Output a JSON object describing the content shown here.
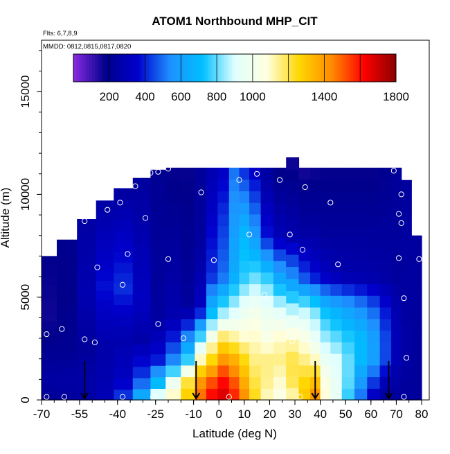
{
  "chart_data": {
    "type": "heatmap",
    "title": "ATOM1 Northbound MHP_CIT",
    "subtitle_flights": "Flts: 6,7,8,9",
    "subtitle_dates": "MMDD: 0812,0815,0817,0820",
    "xlabel": "Latitude (deg N)",
    "ylabel": "Altitude (m)",
    "xlim": [
      -70,
      83
    ],
    "ylim": [
      0,
      17500
    ],
    "x_ticks": [
      -70,
      -55,
      -40,
      -25,
      -10,
      0,
      10,
      20,
      30,
      40,
      50,
      60,
      70,
      80
    ],
    "y_ticks": [
      0,
      5000,
      10000,
      15000
    ],
    "colorbar": {
      "range": [
        0,
        1800
      ],
      "ticks": [
        200,
        400,
        600,
        800,
        1000,
        1400,
        1800
      ],
      "position": "top",
      "colors": [
        "#8a2be2",
        "#00008b",
        "#0000cd",
        "#1e90ff",
        "#00bfff",
        "#e0ffff",
        "#ffffe0",
        "#ffd700",
        "#ff8c00",
        "#ff0000",
        "#8b0000"
      ]
    },
    "grid": false,
    "field_columns": [
      {
        "lat": -68,
        "top": 7000,
        "values": [
          [
            0,
            200
          ],
          [
            1000,
            250
          ],
          [
            3000,
            180
          ],
          [
            4000,
            160
          ],
          [
            7000,
            180
          ]
        ]
      },
      {
        "lat": -60,
        "top": 7800,
        "values": [
          [
            0,
            230
          ],
          [
            1000,
            250
          ],
          [
            2500,
            200
          ],
          [
            5000,
            180
          ],
          [
            7800,
            190
          ]
        ]
      },
      {
        "lat": -52,
        "top": 8800,
        "values": [
          [
            0,
            250
          ],
          [
            1000,
            260
          ],
          [
            2500,
            220
          ],
          [
            5000,
            280
          ],
          [
            8800,
            250
          ]
        ]
      },
      {
        "lat": -45,
        "top": 9700,
        "values": [
          [
            0,
            300
          ],
          [
            1000,
            280
          ],
          [
            2500,
            260
          ],
          [
            5500,
            380
          ],
          [
            9700,
            250
          ]
        ]
      },
      {
        "lat": -38,
        "top": 10300,
        "values": [
          [
            0,
            450
          ],
          [
            1000,
            330
          ],
          [
            3000,
            270
          ],
          [
            5500,
            420
          ],
          [
            8000,
            330
          ],
          [
            10300,
            230
          ]
        ]
      },
      {
        "lat": -30,
        "top": 10800,
        "values": [
          [
            0,
            700
          ],
          [
            1000,
            450
          ],
          [
            3000,
            260
          ],
          [
            5000,
            330
          ],
          [
            10800,
            230
          ]
        ]
      },
      {
        "lat": -24,
        "top": 11200,
        "values": [
          [
            0,
            1000
          ],
          [
            1000,
            650
          ],
          [
            2000,
            380
          ],
          [
            4000,
            240
          ],
          [
            11200,
            200
          ]
        ]
      },
      {
        "lat": -18,
        "top": 11300,
        "values": [
          [
            0,
            1150
          ],
          [
            1000,
            950
          ],
          [
            2000,
            520
          ],
          [
            4000,
            280
          ],
          [
            11300,
            170
          ]
        ]
      },
      {
        "lat": -12,
        "top": 11300,
        "values": [
          [
            0,
            1300
          ],
          [
            1000,
            1200
          ],
          [
            2000,
            750
          ],
          [
            3000,
            550
          ],
          [
            4500,
            230
          ],
          [
            11300,
            170
          ]
        ]
      },
      {
        "lat": -7,
        "top": 11300,
        "values": [
          [
            0,
            1500
          ],
          [
            1000,
            1400
          ],
          [
            2000,
            1100
          ],
          [
            3000,
            800
          ],
          [
            4500,
            330
          ],
          [
            8000,
            230
          ],
          [
            11300,
            220
          ]
        ]
      },
      {
        "lat": -3,
        "top": 11300,
        "values": [
          [
            0,
            1650
          ],
          [
            1000,
            1500
          ],
          [
            2000,
            1250
          ],
          [
            3000,
            1050
          ],
          [
            4000,
            750
          ],
          [
            6000,
            420
          ],
          [
            11300,
            280
          ]
        ]
      },
      {
        "lat": 2,
        "top": 11300,
        "values": [
          [
            0,
            1700
          ],
          [
            1000,
            1600
          ],
          [
            2000,
            1400
          ],
          [
            3000,
            1200
          ],
          [
            4000,
            900
          ],
          [
            6000,
            500
          ],
          [
            9000,
            420
          ],
          [
            11300,
            330
          ]
        ]
      },
      {
        "lat": 6,
        "top": 11300,
        "values": [
          [
            0,
            1600
          ],
          [
            1000,
            1500
          ],
          [
            2000,
            1350
          ],
          [
            3000,
            1150
          ],
          [
            4000,
            950
          ],
          [
            6000,
            650
          ],
          [
            8000,
            600
          ],
          [
            11300,
            500
          ]
        ]
      },
      {
        "lat": 10,
        "top": 11300,
        "values": [
          [
            0,
            1450
          ],
          [
            1000,
            1350
          ],
          [
            2000,
            1250
          ],
          [
            3000,
            1100
          ],
          [
            4500,
            950
          ],
          [
            6000,
            750
          ],
          [
            8000,
            700
          ],
          [
            11300,
            400
          ]
        ]
      },
      {
        "lat": 14,
        "top": 11300,
        "values": [
          [
            0,
            1250
          ],
          [
            1000,
            1200
          ],
          [
            2000,
            1150
          ],
          [
            3000,
            1100
          ],
          [
            4500,
            1000
          ],
          [
            6000,
            800
          ],
          [
            8000,
            580
          ],
          [
            11300,
            330
          ]
        ]
      },
      {
        "lat": 19,
        "top": 11300,
        "values": [
          [
            0,
            1100
          ],
          [
            1000,
            1150
          ],
          [
            2000,
            1150
          ],
          [
            3000,
            1050
          ],
          [
            4500,
            950
          ],
          [
            6000,
            750
          ],
          [
            8000,
            380
          ],
          [
            11300,
            230
          ]
        ]
      },
      {
        "lat": 24,
        "top": 11300,
        "values": [
          [
            0,
            1050
          ],
          [
            1000,
            1100
          ],
          [
            2000,
            1150
          ],
          [
            3000,
            1100
          ],
          [
            4500,
            900
          ],
          [
            6000,
            620
          ],
          [
            8000,
            300
          ],
          [
            11300,
            170
          ]
        ]
      },
      {
        "lat": 29,
        "top": 11800,
        "values": [
          [
            0,
            1100
          ],
          [
            1000,
            1200
          ],
          [
            2000,
            1200
          ],
          [
            3000,
            1100
          ],
          [
            4500,
            850
          ],
          [
            6000,
            550
          ],
          [
            8000,
            280
          ],
          [
            11800,
            150
          ]
        ]
      },
      {
        "lat": 34,
        "top": 11300,
        "values": [
          [
            0,
            1300
          ],
          [
            1000,
            1250
          ],
          [
            2000,
            1150
          ],
          [
            3000,
            1050
          ],
          [
            4500,
            850
          ],
          [
            6000,
            450
          ],
          [
            8000,
            250
          ],
          [
            11300,
            150
          ]
        ]
      },
      {
        "lat": 38,
        "top": 11300,
        "values": [
          [
            0,
            1450
          ],
          [
            1000,
            1300
          ],
          [
            2000,
            1100
          ],
          [
            3000,
            950
          ],
          [
            4500,
            800
          ],
          [
            6000,
            380
          ],
          [
            8000,
            250
          ],
          [
            11300,
            160
          ]
        ]
      },
      {
        "lat": 42,
        "top": 11300,
        "values": [
          [
            0,
            1100
          ],
          [
            1000,
            1050
          ],
          [
            2000,
            950
          ],
          [
            3000,
            850
          ],
          [
            4500,
            700
          ],
          [
            6000,
            330
          ],
          [
            8000,
            230
          ],
          [
            11300,
            170
          ]
        ]
      },
      {
        "lat": 46,
        "top": 11300,
        "values": [
          [
            0,
            950
          ],
          [
            1000,
            950
          ],
          [
            2000,
            900
          ],
          [
            3000,
            800
          ],
          [
            4500,
            650
          ],
          [
            6000,
            300
          ],
          [
            8000,
            230
          ],
          [
            11300,
            170
          ]
        ]
      },
      {
        "lat": 51,
        "top": 11300,
        "values": [
          [
            0,
            750
          ],
          [
            1000,
            800
          ],
          [
            2000,
            800
          ],
          [
            3000,
            750
          ],
          [
            4500,
            600
          ],
          [
            6000,
            280
          ],
          [
            8000,
            230
          ],
          [
            11300,
            170
          ]
        ]
      },
      {
        "lat": 56,
        "top": 11300,
        "values": [
          [
            0,
            480
          ],
          [
            1000,
            600
          ],
          [
            2000,
            700
          ],
          [
            3000,
            700
          ],
          [
            4500,
            550
          ],
          [
            6000,
            270
          ],
          [
            8000,
            230
          ],
          [
            11300,
            170
          ]
        ]
      },
      {
        "lat": 61,
        "top": 11300,
        "values": [
          [
            0,
            300
          ],
          [
            1000,
            450
          ],
          [
            2000,
            600
          ],
          [
            3000,
            600
          ],
          [
            4500,
            480
          ],
          [
            6000,
            260
          ],
          [
            8000,
            230
          ],
          [
            11300,
            170
          ]
        ]
      },
      {
        "lat": 66,
        "top": 11300,
        "values": [
          [
            0,
            230
          ],
          [
            1000,
            320
          ],
          [
            2000,
            450
          ],
          [
            3000,
            450
          ],
          [
            4500,
            380
          ],
          [
            6000,
            250
          ],
          [
            8000,
            230
          ],
          [
            11300,
            190
          ]
        ]
      },
      {
        "lat": 70,
        "top": 11300,
        "values": [
          [
            0,
            230
          ],
          [
            1000,
            250
          ],
          [
            2000,
            300
          ],
          [
            3000,
            300
          ],
          [
            4500,
            280
          ],
          [
            6000,
            230
          ],
          [
            8000,
            230
          ],
          [
            11300,
            220
          ]
        ]
      },
      {
        "lat": 74,
        "top": 10700,
        "values": [
          [
            0,
            230
          ],
          [
            1000,
            230
          ],
          [
            2000,
            250
          ],
          [
            3000,
            250
          ],
          [
            4500,
            240
          ],
          [
            6000,
            230
          ],
          [
            8000,
            240
          ],
          [
            10700,
            230
          ]
        ]
      },
      {
        "lat": 78,
        "top": 8000,
        "values": [
          [
            0,
            230
          ],
          [
            2000,
            230
          ],
          [
            4000,
            230
          ],
          [
            6000,
            240
          ],
          [
            8000,
            240
          ]
        ]
      }
    ],
    "sample_points": [
      [
        -68,
        150
      ],
      [
        -61,
        150
      ],
      [
        -68,
        3200
      ],
      [
        -62,
        3450
      ],
      [
        -53,
        2950
      ],
      [
        -49,
        2800
      ],
      [
        -53,
        8700
      ],
      [
        -48,
        6450
      ],
      [
        -44,
        9250
      ],
      [
        -39,
        9600
      ],
      [
        -37,
        10500
      ],
      [
        -38,
        5600
      ],
      [
        -36,
        7100
      ],
      [
        -38,
        150
      ],
      [
        -33,
        10400
      ],
      [
        -29,
        8850
      ],
      [
        -27,
        11050
      ],
      [
        -24,
        11100
      ],
      [
        -24,
        3700
      ],
      [
        -20,
        11250
      ],
      [
        -20,
        6850
      ],
      [
        -26,
        150
      ],
      [
        -14,
        3000
      ],
      [
        -7,
        10100
      ],
      [
        -2,
        6800
      ],
      [
        -6,
        2250
      ],
      [
        4,
        150
      ],
      [
        8,
        10700
      ],
      [
        12,
        8050
      ],
      [
        15,
        11000
      ],
      [
        18,
        5100
      ],
      [
        24,
        10700
      ],
      [
        28,
        8050
      ],
      [
        29,
        2850
      ],
      [
        32,
        3500
      ],
      [
        33,
        7300
      ],
      [
        34,
        10350
      ],
      [
        36,
        2750
      ],
      [
        32,
        150
      ],
      [
        43,
        150
      ],
      [
        44,
        9600
      ],
      [
        47,
        6600
      ],
      [
        69,
        11150
      ],
      [
        71,
        9050
      ],
      [
        72,
        8600
      ],
      [
        72,
        10000
      ],
      [
        71,
        6900
      ],
      [
        73,
        4950
      ],
      [
        74,
        2050
      ],
      [
        78,
        9900
      ],
      [
        79,
        6850
      ],
      [
        73,
        150
      ]
    ],
    "arrows": [
      -53,
      -9,
      38,
      67
    ],
    "arrow_length_m": 700
  }
}
